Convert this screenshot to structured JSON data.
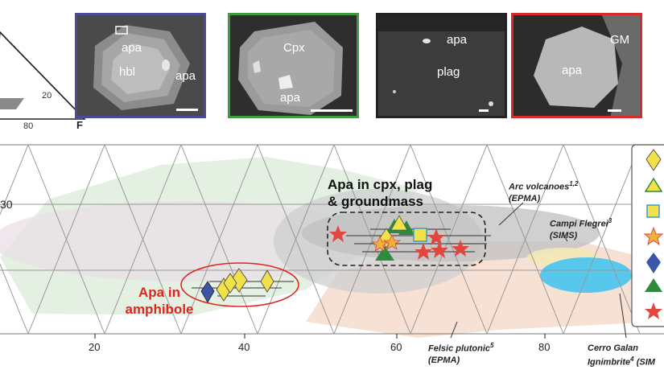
{
  "panels": [
    {
      "id": "hbl",
      "border": "#4b4a9a",
      "labels": {
        "a": "apa",
        "b": "hbl",
        "c": "apa"
      }
    },
    {
      "id": "cpx",
      "border": "#3f9b3f",
      "labels": {
        "a": "Cpx",
        "b": "apa"
      }
    },
    {
      "id": "plag",
      "border": "#222222",
      "labels": {
        "a": "apa",
        "b": "plag"
      }
    },
    {
      "id": "gm",
      "border": "#d42b2b",
      "labels": {
        "a": "GM",
        "b": "apa"
      }
    }
  ],
  "ternary": {
    "tick_20": "20",
    "tick_80": "80",
    "vertex_f": "F"
  },
  "main": {
    "left_tick": "30",
    "x_ticks": [
      "20",
      "40",
      "60",
      "80"
    ],
    "cpx_title_line1": "Apa in cpx, plag",
    "cpx_title_line2": "& groundmass",
    "amph_line1": "Apa in",
    "amph_line2": "amphibole",
    "arc_line1": "Arc volcanoes",
    "arc_sup": "1,2",
    "arc_line2": "(EPMA)",
    "campi_line1": "Campi Flegrei",
    "campi_sup": "3",
    "campi_line2": "(SIMS)",
    "felsic_line1": "Felsic plutonic",
    "felsic_sup": "5",
    "felsic_line2": "(EPMA)",
    "cerro_line1": "Cerro Galan",
    "cerro_line2": "Ignimbrite",
    "cerro_sup": "4",
    "cerro_tail": "(SIM"
  },
  "colors": {
    "amph": "#e0251f",
    "yellow": "#f2e24a",
    "green": "#2e8b3e",
    "blue": "#3a56a8",
    "star": "#e2473d",
    "cyan": "#58c7ec"
  },
  "legend_icons": [
    "yellow-diamond-icon",
    "yellow-triangle-icon",
    "yellow-square-icon",
    "orange-star-icon",
    "blue-diamond-icon",
    "green-triangle-icon",
    "red-star-icon"
  ]
}
